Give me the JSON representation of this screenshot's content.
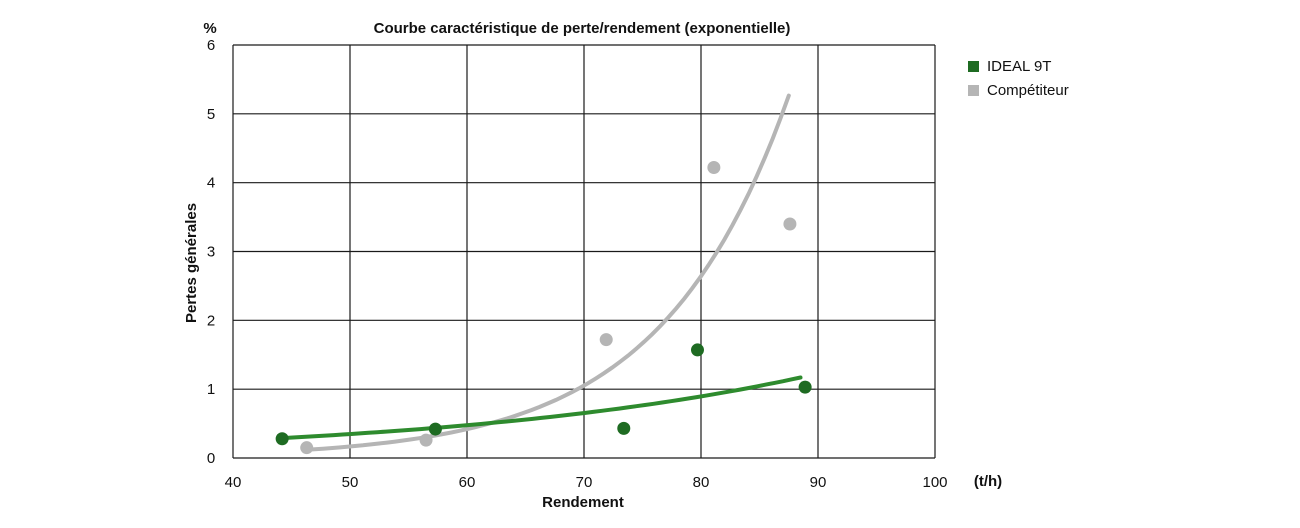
{
  "chart_data": {
    "type": "scatter",
    "title": "Courbe caractéristique de perte/rendement (exponentielle)",
    "xlabel": "Rendement",
    "ylabel": "Pertes générales",
    "x_unit": "(t/h)",
    "y_unit": "%",
    "xlim": [
      40,
      100
    ],
    "ylim": [
      0,
      6
    ],
    "xticks": [
      40,
      50,
      60,
      70,
      80,
      90,
      100
    ],
    "yticks": [
      0,
      1,
      2,
      3,
      4,
      5,
      6
    ],
    "grid": true,
    "legend_position": "right",
    "series": [
      {
        "name": "IDEAL 9T",
        "color": "#1e6b22",
        "trendline_color": "#2e8b2e",
        "points": [
          {
            "x": 44.2,
            "y": 0.28
          },
          {
            "x": 57.3,
            "y": 0.42
          },
          {
            "x": 73.4,
            "y": 0.43
          },
          {
            "x": 79.7,
            "y": 1.57
          },
          {
            "x": 88.9,
            "y": 1.03
          }
        ],
        "trendline": {
          "type": "exponential",
          "x_range": [
            44.2,
            88.5
          ],
          "a": 0.072,
          "b": 0.0315
        }
      },
      {
        "name": "Compétiteur",
        "color": "#b5b5b5",
        "trendline_color": "#b5b5b5",
        "points": [
          {
            "x": 46.3,
            "y": 0.15
          },
          {
            "x": 56.5,
            "y": 0.26
          },
          {
            "x": 71.9,
            "y": 1.72
          },
          {
            "x": 81.1,
            "y": 4.22
          },
          {
            "x": 87.6,
            "y": 3.4
          }
        ],
        "trendline": {
          "type": "exponential",
          "x_range": [
            46.3,
            87.5
          ],
          "a": 0.00168,
          "b": 0.092
        }
      }
    ]
  }
}
